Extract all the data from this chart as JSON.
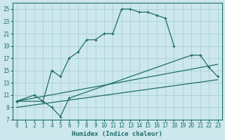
{
  "xlabel": "Humidex (Indice chaleur)",
  "xlim": [
    -0.5,
    23.5
  ],
  "ylim": [
    7,
    26
  ],
  "yticks": [
    7,
    9,
    11,
    13,
    15,
    17,
    19,
    21,
    23,
    25
  ],
  "xticks": [
    0,
    1,
    2,
    3,
    4,
    5,
    6,
    7,
    8,
    9,
    10,
    11,
    12,
    13,
    14,
    15,
    16,
    17,
    18,
    19,
    20,
    21,
    22,
    23
  ],
  "background_color": "#cce8ec",
  "grid_color": "#aacfd4",
  "line_color": "#1e6b6b",
  "curve1_x": [
    0,
    2,
    3,
    4,
    5,
    6,
    7,
    8,
    9,
    10,
    11,
    12,
    13,
    14,
    15,
    16,
    17,
    18
  ],
  "curve1_y": [
    10,
    11,
    10,
    15,
    14,
    17,
    18,
    20,
    20,
    21,
    21,
    25,
    25,
    24.5,
    24.5,
    24,
    23.5,
    19
  ],
  "curve2_x": [
    0,
    3,
    4,
    5,
    6,
    20,
    21,
    22,
    23
  ],
  "curve2_y": [
    10,
    10,
    9,
    7.5,
    10.5,
    17.5,
    17.5,
    15.5,
    14
  ],
  "curve3_x": [
    0,
    23
  ],
  "curve3_y": [
    10,
    16
  ],
  "curve4_x": [
    0,
    23
  ],
  "curve4_y": [
    9,
    13.5
  ]
}
